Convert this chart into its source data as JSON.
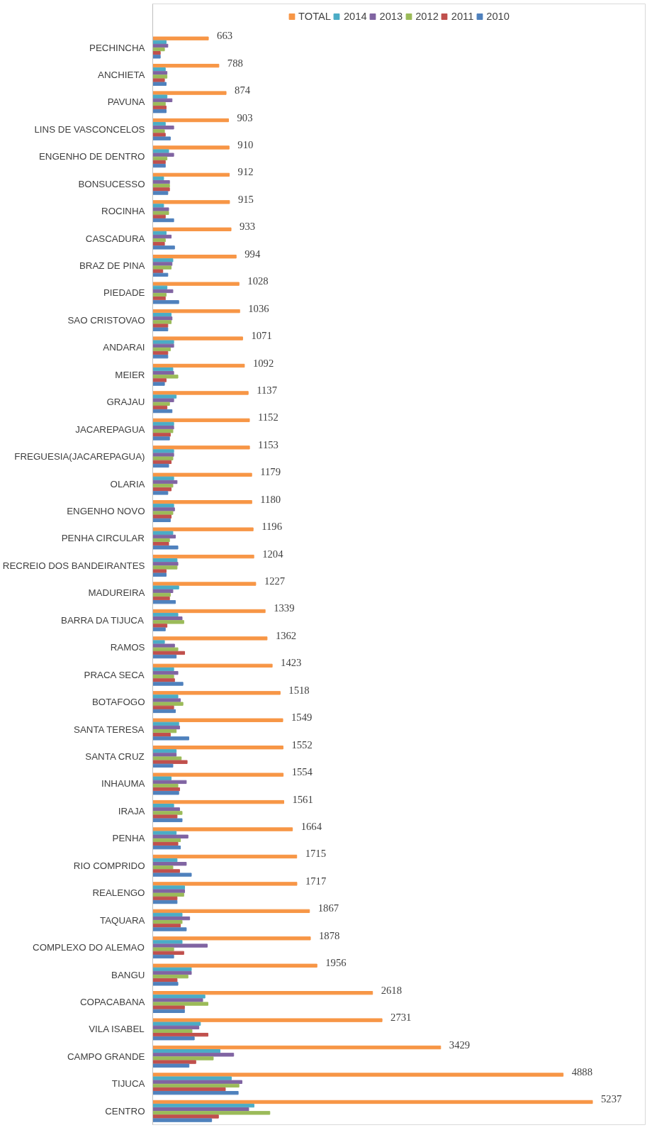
{
  "chart_data": {
    "type": "bar",
    "orientation": "horizontal",
    "legend": "top",
    "grid": false,
    "categories": [
      "PECHINCHA",
      "ANCHIETA",
      "PAVUNA",
      "LINS DE VASCONCELOS",
      "ENGENHO DE DENTRO",
      "BONSUCESSO",
      "ROCINHA",
      "CASCADURA",
      "BRAZ DE PINA",
      "PIEDADE",
      "SAO CRISTOVAO",
      "ANDARAI",
      "MEIER",
      "GRAJAU",
      "JACAREPAGUA",
      "FREGUESIA(JACAREPAGUA)",
      "OLARIA",
      "ENGENHO NOVO",
      "PENHA CIRCULAR",
      "RECREIO DOS BANDEIRANTES",
      "MADUREIRA",
      "BARRA DA TIJUCA",
      "RAMOS",
      "PRACA SECA",
      "BOTAFOGO",
      "SANTA TERESA",
      "SANTA CRUZ",
      "INHAUMA",
      "IRAJA",
      "PENHA",
      "RIO COMPRIDO",
      "REALENGO",
      "TAQUARA",
      "COMPLEXO DO ALEMAO",
      "BANGU",
      "COPACABANA",
      "VILA ISABEL",
      "CAMPO GRANDE",
      "TIJUCA",
      "CENTRO"
    ],
    "series": [
      {
        "name": "TOTAL",
        "color": "#f79646",
        "data_labels": true,
        "values": [
          663,
          788,
          874,
          903,
          910,
          912,
          915,
          933,
          994,
          1028,
          1036,
          1071,
          1092,
          1137,
          1152,
          1153,
          1179,
          1180,
          1196,
          1204,
          1227,
          1339,
          1362,
          1423,
          1518,
          1549,
          1552,
          1554,
          1561,
          1664,
          1715,
          1717,
          1867,
          1878,
          1956,
          2618,
          2731,
          3429,
          4888,
          5237
        ]
      },
      {
        "name": "2014",
        "color": "#4bacc6",
        "values": [
          160,
          150,
          170,
          150,
          190,
          130,
          130,
          160,
          240,
          170,
          220,
          250,
          240,
          280,
          250,
          250,
          250,
          250,
          240,
          290,
          310,
          300,
          140,
          250,
          300,
          310,
          280,
          220,
          250,
          280,
          290,
          380,
          350,
          350,
          460,
          622,
          568,
          802,
          937,
          1206
        ]
      },
      {
        "name": "2013",
        "color": "#8064a2",
        "values": [
          180,
          170,
          230,
          250,
          250,
          200,
          190,
          220,
          230,
          240,
          230,
          250,
          250,
          250,
          250,
          250,
          290,
          260,
          270,
          300,
          240,
          350,
          260,
          300,
          330,
          320,
          280,
          400,
          320,
          420,
          400,
          380,
          440,
          650,
          460,
          595,
          550,
          964,
          1063,
          1143
        ]
      },
      {
        "name": "2012",
        "color": "#9bbb59",
        "values": [
          140,
          170,
          150,
          140,
          170,
          200,
          190,
          150,
          220,
          160,
          220,
          210,
          300,
          200,
          240,
          240,
          240,
          240,
          200,
          290,
          210,
          370,
          300,
          250,
          360,
          280,
          340,
          300,
          350,
          330,
          240,
          370,
          350,
          250,
          420,
          658,
          468,
          721,
          1027,
          1395
        ]
      },
      {
        "name": "2011",
        "color": "#c0504d",
        "values": [
          90,
          140,
          160,
          150,
          150,
          200,
          150,
          140,
          120,
          150,
          180,
          180,
          160,
          170,
          210,
          220,
          220,
          220,
          190,
          160,
          200,
          170,
          380,
          260,
          250,
          210,
          410,
          320,
          290,
          300,
          320,
          290,
          330,
          370,
          290,
          378,
          658,
          513,
          865,
          783
        ]
      },
      {
        "name": "2010",
        "color": "#4f81bd",
        "values": [
          90,
          160,
          160,
          210,
          150,
          180,
          250,
          260,
          180,
          310,
          180,
          180,
          140,
          230,
          200,
          190,
          180,
          210,
          300,
          160,
          270,
          150,
          280,
          360,
          270,
          430,
          240,
          310,
          350,
          330,
          460,
          290,
          400,
          250,
          300,
          378,
          495,
          432,
          1018,
          702
        ]
      }
    ]
  }
}
